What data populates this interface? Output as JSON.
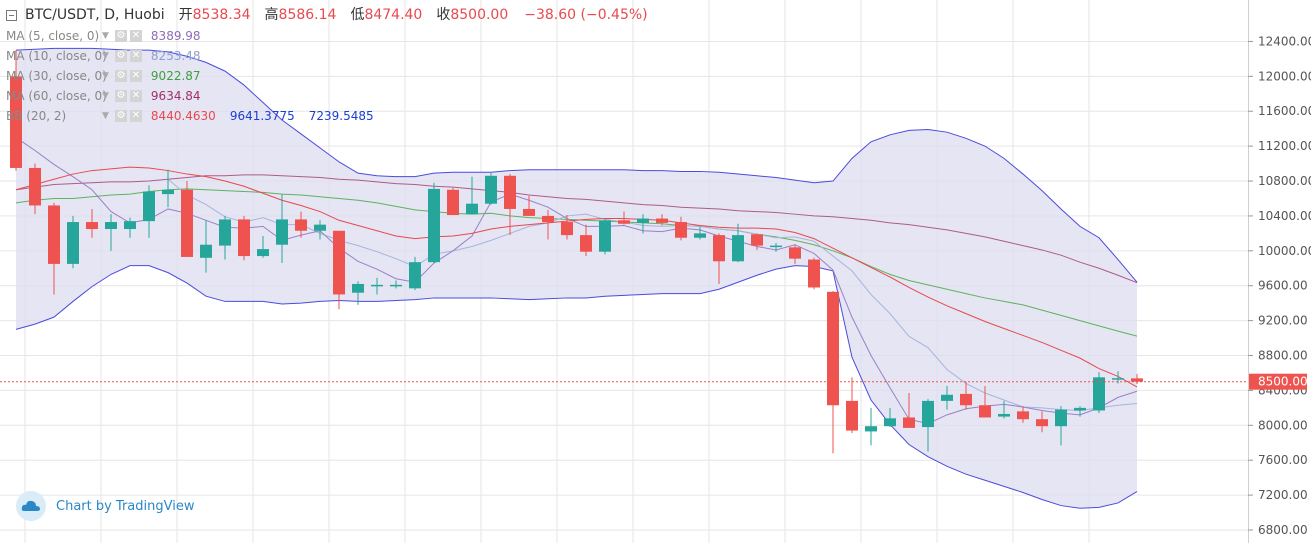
{
  "header": {
    "symbol": "BTC/USDT, D, Huobi",
    "open_label": "开",
    "open_value": "8538.34",
    "high_label": "高",
    "high_value": "8586.14",
    "low_label": "低",
    "low_value": "8474.40",
    "close_label": "收",
    "close_value": "8500.00",
    "change_value": "−38.60 (−0.45%)"
  },
  "indicators": [
    {
      "label": "MA (5, close, 0)",
      "values": [
        "8389.98"
      ],
      "colors": [
        "#8e6cb8"
      ]
    },
    {
      "label": "MA (10, close, 0)",
      "values": [
        "8253.48"
      ],
      "colors": [
        "#8ea0cf"
      ]
    },
    {
      "label": "MA (30, close, 0)",
      "values": [
        "9022.87"
      ],
      "colors": [
        "#3d9f3d"
      ]
    },
    {
      "label": "MA (60, close, 0)",
      "values": [
        "9634.84"
      ],
      "colors": [
        "#a0306a"
      ]
    },
    {
      "label": "BB (20, 2)",
      "values": [
        "8440.4630",
        "9641.3775",
        "7239.5485"
      ],
      "colors": [
        "#e8494e",
        "#1b3fd1",
        "#1b3fd1"
      ]
    }
  ],
  "branding": {
    "text": "Chart by TradingView"
  },
  "colors": {
    "up": "#26a69a",
    "down": "#ef5350",
    "band_fill": "#dcdcef",
    "band_line": "#4b4bdc",
    "mid_line": "#e8494e",
    "ma5": "#9a80c8",
    "ma10": "#a7b4dd",
    "ma30": "#5fb25f",
    "ma60": "#b05a8c",
    "price_line": "#ef5350",
    "grid": "#e6e6e6"
  },
  "chart_data": {
    "type": "candlestick",
    "ylim": [
      6800,
      12600
    ],
    "yticks": [
      6800,
      7200,
      7600,
      8000,
      8400,
      8800,
      9200,
      9600,
      10000,
      10400,
      10800,
      11200,
      11600,
      12000,
      12400
    ],
    "ytick_labels": [
      "6800.00",
      "7200.00",
      "7600.00",
      "8000.00",
      "8400.00",
      "8800.00",
      "9200.00",
      "9600.00",
      "10000.00",
      "10400.00",
      "10800.00",
      "11200.00",
      "11600.00",
      "12000.00",
      "12400.00"
    ],
    "last_price": 8500,
    "last_price_label": "8500.00",
    "candles": [
      [
        12000,
        12300,
        10920,
        10950
      ],
      [
        10950,
        11000,
        10420,
        10520
      ],
      [
        10520,
        10550,
        9500,
        9850
      ],
      [
        9850,
        10400,
        9800,
        10330
      ],
      [
        10330,
        10480,
        10150,
        10250
      ],
      [
        10250,
        10420,
        10000,
        10330
      ],
      [
        10250,
        10380,
        10150,
        10340
      ],
      [
        10340,
        10750,
        10150,
        10680
      ],
      [
        10650,
        10930,
        10500,
        10700
      ],
      [
        10700,
        10800,
        9930,
        9930
      ],
      [
        9920,
        10350,
        9750,
        10070
      ],
      [
        10060,
        10400,
        9900,
        10360
      ],
      [
        10360,
        10400,
        9890,
        9940
      ],
      [
        9940,
        10170,
        9920,
        10020
      ],
      [
        10070,
        10650,
        9860,
        10360
      ],
      [
        10360,
        10450,
        10150,
        10230
      ],
      [
        10230,
        10350,
        10130,
        10300
      ],
      [
        10230,
        10220,
        9330,
        9500
      ],
      [
        9520,
        9650,
        9380,
        9620
      ],
      [
        9600,
        9690,
        9500,
        9610
      ],
      [
        9600,
        9660,
        9570,
        9610
      ],
      [
        9570,
        9930,
        9550,
        9870
      ],
      [
        9870,
        10780,
        9860,
        10710
      ],
      [
        10700,
        10720,
        10420,
        10410
      ],
      [
        10420,
        10850,
        10420,
        10540
      ],
      [
        10540,
        10890,
        10530,
        10860
      ],
      [
        10860,
        10880,
        10180,
        10480
      ],
      [
        10480,
        10630,
        10400,
        10400
      ],
      [
        10400,
        10470,
        10130,
        10330
      ],
      [
        10330,
        10410,
        10130,
        10180
      ],
      [
        10180,
        10300,
        9940,
        9990
      ],
      [
        9990,
        10360,
        9960,
        10350
      ],
      [
        10350,
        10450,
        10300,
        10310
      ],
      [
        10320,
        10420,
        10200,
        10370
      ],
      [
        10370,
        10420,
        10290,
        10320
      ],
      [
        10330,
        10390,
        10120,
        10150
      ],
      [
        10150,
        10280,
        10130,
        10200
      ],
      [
        10180,
        10200,
        9620,
        9880
      ],
      [
        9880,
        10310,
        9870,
        10180
      ],
      [
        10190,
        10200,
        10010,
        10060
      ],
      [
        10050,
        10090,
        9990,
        10060
      ],
      [
        10040,
        10070,
        9850,
        9910
      ],
      [
        9900,
        9920,
        9560,
        9580
      ],
      [
        9530,
        9540,
        7680,
        8230
      ],
      [
        8280,
        8550,
        7910,
        7940
      ],
      [
        7930,
        8200,
        7770,
        7990
      ],
      [
        7990,
        8200,
        7980,
        8080
      ],
      [
        8090,
        8370,
        8010,
        7970
      ],
      [
        7980,
        8300,
        7700,
        8280
      ],
      [
        8280,
        8450,
        8180,
        8350
      ],
      [
        8360,
        8500,
        8180,
        8230
      ],
      [
        8230,
        8450,
        8110,
        8090
      ],
      [
        8100,
        8280,
        8080,
        8130
      ],
      [
        8160,
        8220,
        8030,
        8070
      ],
      [
        8070,
        8160,
        7920,
        7990
      ],
      [
        7990,
        8220,
        7770,
        8180
      ],
      [
        8170,
        8220,
        8100,
        8200
      ],
      [
        8170,
        8610,
        8140,
        8550
      ],
      [
        8540,
        8620,
        8480,
        8540
      ],
      [
        8538,
        8586,
        8474,
        8500
      ]
    ],
    "ma5": [
      11300,
      11150,
      10990,
      10850,
      10700,
      10450,
      10320,
      10360,
      10480,
      10430,
      10350,
      10270,
      10260,
      10280,
      10120,
      10180,
      10230,
      10030,
      9880,
      9790,
      9680,
      9640,
      9860,
      10000,
      10170,
      10560,
      10650,
      10580,
      10500,
      10370,
      10280,
      10280,
      10290,
      10230,
      10220,
      10260,
      10240,
      10170,
      10110,
      10050,
      10010,
      10070,
      9970,
      9780,
      9240,
      8800,
      8430,
      8070,
      8020,
      8120,
      8190,
      8220,
      8240,
      8210,
      8170,
      8140,
      8120,
      8200,
      8320,
      8390
    ],
    "ma10": [
      null,
      null,
      null,
      null,
      null,
      null,
      null,
      null,
      10820,
      10640,
      10530,
      10390,
      10330,
      10380,
      10300,
      10300,
      10200,
      10120,
      10060,
      9990,
      9910,
      9820,
      9960,
      10000,
      10050,
      10120,
      10200,
      10280,
      10320,
      10400,
      10420,
      10360,
      10330,
      10290,
      10280,
      10290,
      10280,
      10250,
      10230,
      10190,
      10150,
      10160,
      10110,
      9940,
      9770,
      9500,
      9280,
      9020,
      8890,
      8640,
      8480,
      8370,
      8290,
      8210,
      8200,
      8180,
      8170,
      8200,
      8230,
      8250
    ],
    "ma30": [
      10550,
      10580,
      10600,
      10600,
      10620,
      10640,
      10650,
      10680,
      10700,
      10710,
      10700,
      10690,
      10680,
      10670,
      10650,
      10640,
      10620,
      10600,
      10580,
      10550,
      10510,
      10470,
      10450,
      10430,
      10420,
      10430,
      10400,
      10380,
      10370,
      10360,
      10350,
      10340,
      10330,
      10320,
      10310,
      10290,
      10280,
      10250,
      10230,
      10190,
      10160,
      10120,
      10070,
      10000,
      9920,
      9820,
      9730,
      9660,
      9610,
      9560,
      9510,
      9460,
      9420,
      9380,
      9320,
      9260,
      9200,
      9140,
      9080,
      9022
    ],
    "ma60": [
      10700,
      10730,
      10760,
      10770,
      10780,
      10790,
      10790,
      10800,
      10820,
      10840,
      10860,
      10860,
      10870,
      10870,
      10860,
      10850,
      10840,
      10820,
      10810,
      10790,
      10770,
      10760,
      10740,
      10730,
      10710,
      10690,
      10670,
      10640,
      10620,
      10600,
      10590,
      10570,
      10550,
      10530,
      10520,
      10500,
      10490,
      10480,
      10460,
      10450,
      10440,
      10420,
      10400,
      10390,
      10370,
      10350,
      10320,
      10300,
      10270,
      10240,
      10200,
      10160,
      10110,
      10060,
      10010,
      9950,
      9870,
      9800,
      9720,
      9635
    ],
    "bb_mid": [
      10700,
      10760,
      10820,
      10880,
      10920,
      10940,
      10960,
      10950,
      10920,
      10880,
      10850,
      10800,
      10740,
      10660,
      10580,
      10520,
      10450,
      10350,
      10290,
      10230,
      10170,
      10140,
      10160,
      10170,
      10200,
      10250,
      10280,
      10300,
      10320,
      10340,
      10360,
      10370,
      10370,
      10360,
      10350,
      10320,
      10290,
      10270,
      10260,
      10260,
      10250,
      10210,
      10140,
      10030,
      9920,
      9810,
      9700,
      9580,
      9470,
      9370,
      9280,
      9190,
      9110,
      9030,
      8950,
      8860,
      8770,
      8650,
      8560,
      8440
    ],
    "bb_upper": [
      12300,
      12310,
      12320,
      12320,
      12320,
      12310,
      12300,
      12300,
      12280,
      12230,
      12160,
      12060,
      11900,
      11700,
      11500,
      11340,
      11180,
      11020,
      10890,
      10860,
      10850,
      10850,
      10890,
      10900,
      10900,
      10900,
      10920,
      10930,
      10930,
      10930,
      10930,
      10930,
      10930,
      10920,
      10920,
      10910,
      10910,
      10900,
      10880,
      10860,
      10840,
      10810,
      10780,
      10800,
      11060,
      11250,
      11330,
      11380,
      11390,
      11360,
      11290,
      11200,
      11060,
      10880,
      10690,
      10480,
      10280,
      10150,
      9900,
      9640
    ],
    "bb_lower": [
      9100,
      9160,
      9240,
      9420,
      9590,
      9730,
      9830,
      9830,
      9750,
      9630,
      9480,
      9420,
      9420,
      9420,
      9390,
      9400,
      9420,
      9430,
      9420,
      9420,
      9430,
      9440,
      9460,
      9460,
      9460,
      9460,
      9450,
      9440,
      9450,
      9460,
      9460,
      9480,
      9490,
      9500,
      9510,
      9510,
      9510,
      9560,
      9640,
      9720,
      9790,
      9830,
      9820,
      9770,
      8780,
      8290,
      8010,
      7780,
      7640,
      7530,
      7440,
      7370,
      7300,
      7230,
      7150,
      7080,
      7050,
      7060,
      7110,
      7240
    ]
  }
}
